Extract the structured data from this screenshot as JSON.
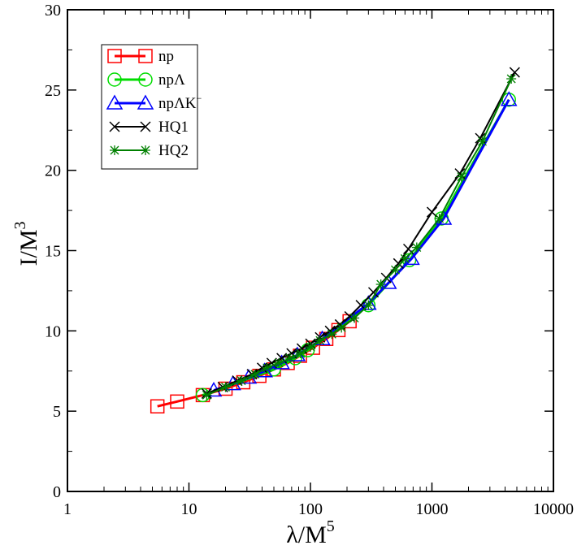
{
  "chart_data": {
    "type": "line",
    "title": "",
    "xlabel": {
      "base": "λ/M",
      "sup": "5"
    },
    "ylabel": {
      "base": "I/M",
      "sup": "3"
    },
    "xscale": "log",
    "xlim": [
      1,
      10000
    ],
    "ylim": [
      0,
      30
    ],
    "x_ticks": [
      1,
      10,
      100,
      1000,
      10000
    ],
    "x_tick_labels": [
      "1",
      "10",
      "100",
      "1000",
      "10000"
    ],
    "y_ticks": [
      0,
      5,
      10,
      15,
      20,
      25,
      30
    ],
    "y_tick_labels": [
      "0",
      "5",
      "10",
      "15",
      "20",
      "25",
      "30"
    ],
    "grid": false,
    "legend_position": "top-left",
    "series": [
      {
        "name": "np",
        "legend_main": "np",
        "legend_sup": "",
        "color": "#ff0000",
        "marker": "square",
        "line_width": 3,
        "x": [
          5.5,
          8,
          13,
          20,
          28,
          38,
          50,
          65,
          82,
          105,
          135,
          170,
          210
        ],
        "y": [
          5.3,
          5.6,
          6.0,
          6.4,
          6.8,
          7.2,
          7.6,
          8.0,
          8.45,
          8.95,
          9.5,
          10.05,
          10.6
        ]
      },
      {
        "name": "npΛ",
        "legend_main": "npΛ",
        "legend_sup": "",
        "color": "#00dd00",
        "marker": "circle",
        "line_width": 3,
        "x": [
          13,
          50,
          75,
          95,
          300,
          650,
          1200,
          4300
        ],
        "y": [
          6.0,
          7.6,
          8.3,
          8.8,
          11.6,
          14.4,
          17.0,
          24.4
        ]
      },
      {
        "name": "npΛK⁻",
        "legend_main": "npΛK",
        "legend_sup": "−",
        "color": "#0000ff",
        "marker": "triangle",
        "line_width": 3,
        "x": [
          16,
          23,
          31,
          42,
          58,
          78,
          125,
          300,
          440,
          680,
          1250,
          4300
        ],
        "y": [
          6.3,
          6.7,
          7.1,
          7.5,
          8.0,
          8.5,
          9.5,
          11.7,
          13.0,
          14.5,
          17.0,
          24.4
        ]
      },
      {
        "name": "HQ1",
        "legend_main": "HQ1",
        "legend_sup": "",
        "color": "#000000",
        "marker": "x",
        "line_width": 2,
        "x": [
          14,
          19,
          25,
          33,
          40,
          48,
          58,
          70,
          85,
          100,
          120,
          145,
          175,
          210,
          260,
          330,
          420,
          530,
          640,
          1000,
          1700,
          2500,
          4800
        ],
        "y": [
          6.1,
          6.5,
          6.9,
          7.3,
          7.7,
          8.0,
          8.3,
          8.6,
          8.9,
          9.2,
          9.6,
          10.0,
          10.4,
          10.9,
          11.6,
          12.4,
          13.3,
          14.2,
          15.1,
          17.4,
          19.8,
          22.0,
          26.1
        ]
      },
      {
        "name": "HQ2",
        "legend_main": "HQ2",
        "legend_sup": "",
        "color": "#008000",
        "marker": "star",
        "line_width": 2,
        "x": [
          14,
          20,
          27,
          35,
          44,
          55,
          68,
          83,
          100,
          120,
          150,
          180,
          230,
          300,
          380,
          500,
          600,
          750,
          1150,
          1750,
          2600,
          4500
        ],
        "y": [
          6.0,
          6.5,
          6.9,
          7.3,
          7.7,
          8.0,
          8.3,
          8.6,
          9.0,
          9.4,
          9.8,
          10.2,
          10.8,
          11.6,
          12.9,
          13.8,
          14.5,
          15.2,
          17.0,
          19.6,
          21.8,
          25.7
        ]
      }
    ]
  }
}
